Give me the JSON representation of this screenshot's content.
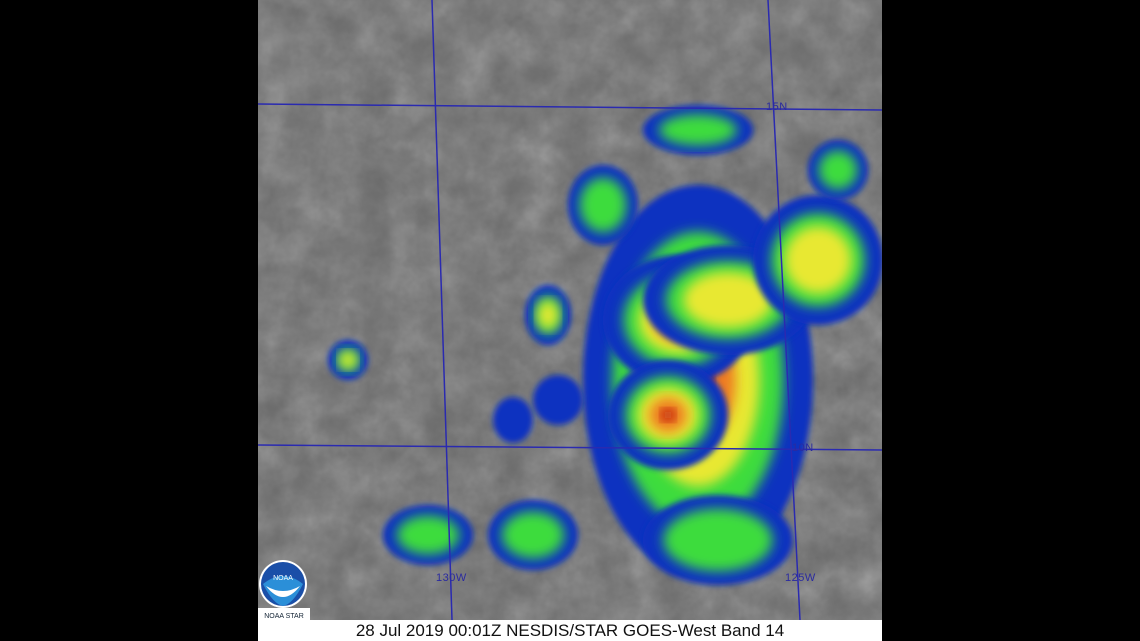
{
  "image": {
    "caption": "28 Jul 2019 00:01Z NESDIS/STAR GOES-West Band 14",
    "grid_labels": {
      "lat_north": "15N",
      "lat_south": "10N",
      "lon_west": "130W",
      "lon_east": "125W"
    },
    "logo": {
      "text": "NOAA",
      "subtext": "NOAA STAR"
    },
    "colors": {
      "grid": "#2a2ab0",
      "background": "#6e6e6e",
      "cold_tops_red": "#b01010",
      "green": "#3cdc3c",
      "yellow": "#e8e830",
      "blue_edge": "#1030c0"
    }
  }
}
